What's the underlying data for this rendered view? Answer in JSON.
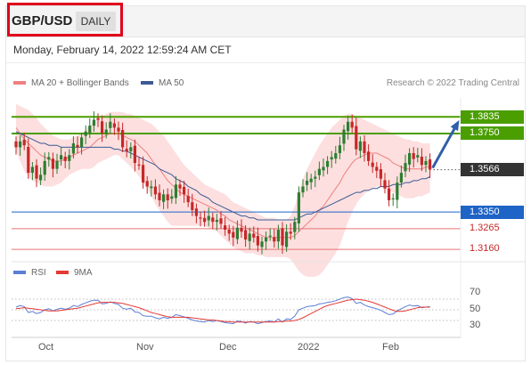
{
  "header": {
    "symbol": "GBP/USD",
    "timeframe": "DAILY",
    "datetime": "Monday, February 14, 2022 12:59:24 AM CET"
  },
  "legend": {
    "bollinger": "MA 20 + Bollinger Bands",
    "ma50": "MA 50",
    "credit": "Research © 2022 Trading Central"
  },
  "osc_legend": {
    "rsi": "RSI",
    "ma9": "9MA"
  },
  "levels": [
    {
      "label": "1.3835",
      "value": 1.3835,
      "style": "resistance"
    },
    {
      "label": "1.3750",
      "value": 1.375,
      "style": "resistance"
    },
    {
      "label": "1.3566",
      "value": 1.3566,
      "style": "current"
    },
    {
      "label": "1.3350",
      "value": 1.335,
      "style": "pivot"
    },
    {
      "label": "1.3265",
      "value": 1.3265,
      "style": "support"
    },
    {
      "label": "1.3160",
      "value": 1.316,
      "style": "support"
    }
  ],
  "osc_levels": [
    "70",
    "50",
    "30"
  ],
  "months": [
    "Oct",
    "Nov",
    "Dec",
    "2022",
    "Feb"
  ],
  "colors": {
    "up": "#2e7d32",
    "down": "#c62828",
    "ma20": "#f08080",
    "band": "#fdd9d9",
    "ma50": "#3d5a96",
    "resistance": "#4a9e00",
    "pivot": "#1e63c6",
    "support": "#e57373",
    "rsi": "#5b7fd6",
    "ma9": "#e53935",
    "current": "#333333"
  },
  "chart_data": {
    "type": "candlestick",
    "interval": "daily",
    "ylim": [
      1.3115,
      1.3945
    ],
    "x": [
      "2021-09-23",
      "2021-09-24",
      "2021-09-27",
      "2021-09-28",
      "2021-09-29",
      "2021-09-30",
      "2021-10-01",
      "2021-10-04",
      "2021-10-05",
      "2021-10-06",
      "2021-10-07",
      "2021-10-08",
      "2021-10-11",
      "2021-10-12",
      "2021-10-13",
      "2021-10-14",
      "2021-10-15",
      "2021-10-18",
      "2021-10-19",
      "2021-10-20",
      "2021-10-21",
      "2021-10-22",
      "2021-10-25",
      "2021-10-26",
      "2021-10-27",
      "2021-10-28",
      "2021-10-29",
      "2021-11-01",
      "2021-11-02",
      "2021-11-03",
      "2021-11-04",
      "2021-11-05",
      "2021-11-08",
      "2021-11-09",
      "2021-11-10",
      "2021-11-11",
      "2021-11-12",
      "2021-11-15",
      "2021-11-16",
      "2021-11-17",
      "2021-11-18",
      "2021-11-19",
      "2021-11-22",
      "2021-11-23",
      "2021-11-24",
      "2021-11-25",
      "2021-11-26",
      "2021-11-29",
      "2021-11-30",
      "2021-12-01",
      "2021-12-02",
      "2021-12-03",
      "2021-12-06",
      "2021-12-07",
      "2021-12-08",
      "2021-12-09",
      "2021-12-10",
      "2021-12-13",
      "2021-12-14",
      "2021-12-15",
      "2021-12-16",
      "2021-12-17",
      "2021-12-20",
      "2021-12-21",
      "2021-12-22",
      "2021-12-23",
      "2021-12-24",
      "2021-12-27",
      "2021-12-28",
      "2021-12-29",
      "2021-12-30",
      "2021-12-31",
      "2022-01-03",
      "2022-01-04",
      "2022-01-05",
      "2022-01-06",
      "2022-01-07",
      "2022-01-10",
      "2022-01-11",
      "2022-01-12",
      "2022-01-13",
      "2022-01-14",
      "2022-01-17",
      "2022-01-18",
      "2022-01-19",
      "2022-01-20",
      "2022-01-21",
      "2022-01-24",
      "2022-01-25",
      "2022-01-26",
      "2022-01-27",
      "2022-01-28",
      "2022-01-31",
      "2022-02-01",
      "2022-02-02",
      "2022-02-03",
      "2022-02-04",
      "2022-02-07",
      "2022-02-08",
      "2022-02-09",
      "2022-02-10",
      "2022-02-11"
    ],
    "close": [
      1.368,
      1.371,
      1.369,
      1.355,
      1.358,
      1.352,
      1.354,
      1.361,
      1.363,
      1.357,
      1.361,
      1.364,
      1.361,
      1.364,
      1.37,
      1.368,
      1.373,
      1.376,
      1.379,
      1.382,
      1.382,
      1.375,
      1.377,
      1.381,
      1.378,
      1.376,
      1.368,
      1.366,
      1.368,
      1.36,
      1.359,
      1.35,
      1.348,
      1.348,
      1.344,
      1.341,
      1.344,
      1.341,
      1.343,
      1.349,
      1.347,
      1.344,
      1.34,
      1.336,
      1.333,
      1.332,
      1.33,
      1.333,
      1.33,
      1.331,
      1.329,
      1.326,
      1.324,
      1.322,
      1.327,
      1.325,
      1.321,
      1.324,
      1.322,
      1.318,
      1.32,
      1.322,
      1.323,
      1.32,
      1.326,
      1.318,
      1.325,
      1.324,
      1.33,
      1.345,
      1.348,
      1.351,
      1.352,
      1.353,
      1.357,
      1.358,
      1.361,
      1.363,
      1.365,
      1.369,
      1.377,
      1.381,
      1.378,
      1.367,
      1.371,
      1.365,
      1.361,
      1.358,
      1.356,
      1.352,
      1.347,
      1.341,
      1.342,
      1.35,
      1.355,
      1.36,
      1.365,
      1.362,
      1.364,
      1.359,
      1.361,
      1.3566
    ],
    "ma20": [
      1.378,
      1.375,
      1.372,
      1.37,
      1.368,
      1.366,
      1.364,
      1.363,
      1.362,
      1.361,
      1.361,
      1.361,
      1.362,
      1.363,
      1.364,
      1.365,
      1.366,
      1.367,
      1.368,
      1.37,
      1.372,
      1.373,
      1.374,
      1.375,
      1.375,
      1.375,
      1.374,
      1.373,
      1.372,
      1.371,
      1.369,
      1.367,
      1.365,
      1.362,
      1.359,
      1.357,
      1.354,
      1.351,
      1.349,
      1.347,
      1.345,
      1.344,
      1.343,
      1.342,
      1.341,
      1.34,
      1.339,
      1.338,
      1.337,
      1.336,
      1.334,
      1.333,
      1.331,
      1.33,
      1.329,
      1.328,
      1.327,
      1.326,
      1.325,
      1.324,
      1.323,
      1.322,
      1.322,
      1.322,
      1.322,
      1.322,
      1.322,
      1.322,
      1.323,
      1.325,
      1.327,
      1.329,
      1.331,
      1.333,
      1.336,
      1.338,
      1.341,
      1.344,
      1.347,
      1.35,
      1.354,
      1.357,
      1.36,
      1.362,
      1.363,
      1.364,
      1.365,
      1.365,
      1.365,
      1.364,
      1.363,
      1.362,
      1.36,
      1.359,
      1.358,
      1.357,
      1.357,
      1.357,
      1.357,
      1.357,
      1.358,
      1.358
    ],
    "ma50": [
      1.376,
      1.375,
      1.374,
      1.373,
      1.372,
      1.371,
      1.37,
      1.37,
      1.369,
      1.369,
      1.369,
      1.368,
      1.368,
      1.368,
      1.368,
      1.368,
      1.368,
      1.368,
      1.368,
      1.368,
      1.368,
      1.368,
      1.368,
      1.368,
      1.367,
      1.367,
      1.366,
      1.366,
      1.365,
      1.364,
      1.363,
      1.362,
      1.361,
      1.36,
      1.359,
      1.357,
      1.356,
      1.355,
      1.354,
      1.352,
      1.351,
      1.35,
      1.348,
      1.347,
      1.346,
      1.344,
      1.343,
      1.342,
      1.34,
      1.339,
      1.338,
      1.337,
      1.336,
      1.335,
      1.334,
      1.333,
      1.333,
      1.332,
      1.332,
      1.331,
      1.331,
      1.331,
      1.331,
      1.331,
      1.331,
      1.331,
      1.331,
      1.331,
      1.331,
      1.332,
      1.333,
      1.334,
      1.334,
      1.335,
      1.336,
      1.337,
      1.338,
      1.339,
      1.34,
      1.341,
      1.342,
      1.343,
      1.344,
      1.345,
      1.345,
      1.346,
      1.346,
      1.347,
      1.347,
      1.348,
      1.348,
      1.348,
      1.349,
      1.349,
      1.349,
      1.35,
      1.35,
      1.351,
      1.351,
      1.352,
      1.352,
      1.353
    ],
    "band_upper": [
      1.39,
      1.389,
      1.388,
      1.387,
      1.385,
      1.383,
      1.38,
      1.378,
      1.376,
      1.374,
      1.373,
      1.372,
      1.372,
      1.372,
      1.373,
      1.374,
      1.375,
      1.377,
      1.379,
      1.381,
      1.383,
      1.384,
      1.385,
      1.386,
      1.386,
      1.386,
      1.386,
      1.385,
      1.385,
      1.384,
      1.383,
      1.382,
      1.381,
      1.38,
      1.378,
      1.376,
      1.374,
      1.371,
      1.368,
      1.365,
      1.362,
      1.359,
      1.357,
      1.355,
      1.353,
      1.351,
      1.349,
      1.348,
      1.347,
      1.346,
      1.345,
      1.344,
      1.342,
      1.34,
      1.339,
      1.338,
      1.337,
      1.336,
      1.335,
      1.334,
      1.333,
      1.332,
      1.332,
      1.332,
      1.331,
      1.331,
      1.331,
      1.333,
      1.338,
      1.345,
      1.352,
      1.357,
      1.361,
      1.365,
      1.369,
      1.372,
      1.375,
      1.378,
      1.38,
      1.382,
      1.384,
      1.385,
      1.385,
      1.384,
      1.383,
      1.382,
      1.381,
      1.38,
      1.379,
      1.378,
      1.377,
      1.376,
      1.375,
      1.374,
      1.373,
      1.372,
      1.372,
      1.371,
      1.371,
      1.37,
      1.37,
      1.37
    ],
    "band_lower": [
      1.366,
      1.361,
      1.356,
      1.353,
      1.351,
      1.35,
      1.349,
      1.348,
      1.348,
      1.348,
      1.349,
      1.35,
      1.352,
      1.354,
      1.355,
      1.356,
      1.357,
      1.357,
      1.357,
      1.358,
      1.36,
      1.361,
      1.362,
      1.363,
      1.364,
      1.364,
      1.362,
      1.36,
      1.358,
      1.356,
      1.353,
      1.35,
      1.347,
      1.343,
      1.339,
      1.336,
      1.333,
      1.33,
      1.328,
      1.328,
      1.328,
      1.328,
      1.328,
      1.328,
      1.328,
      1.328,
      1.328,
      1.327,
      1.326,
      1.325,
      1.323,
      1.321,
      1.319,
      1.317,
      1.316,
      1.315,
      1.314,
      1.314,
      1.314,
      1.313,
      1.313,
      1.312,
      1.312,
      1.312,
      1.312,
      1.312,
      1.312,
      1.311,
      1.308,
      1.305,
      1.303,
      1.302,
      1.302,
      1.302,
      1.303,
      1.305,
      1.308,
      1.311,
      1.314,
      1.318,
      1.324,
      1.33,
      1.335,
      1.339,
      1.342,
      1.344,
      1.346,
      1.347,
      1.348,
      1.348,
      1.347,
      1.346,
      1.345,
      1.344,
      1.343,
      1.342,
      1.342,
      1.342,
      1.343,
      1.343,
      1.344,
      1.345
    ],
    "rsi": [
      55,
      58,
      56,
      45,
      47,
      43,
      45,
      50,
      52,
      48,
      51,
      53,
      51,
      53,
      58,
      56,
      60,
      63,
      66,
      68,
      68,
      61,
      62,
      65,
      62,
      60,
      53,
      51,
      53,
      46,
      45,
      39,
      38,
      38,
      35,
      33,
      36,
      34,
      36,
      41,
      39,
      37,
      34,
      31,
      29,
      28,
      27,
      30,
      28,
      30,
      28,
      26,
      25,
      24,
      29,
      28,
      25,
      28,
      27,
      24,
      26,
      28,
      29,
      27,
      33,
      27,
      33,
      32,
      38,
      50,
      53,
      56,
      57,
      58,
      61,
      62,
      64,
      65,
      67,
      70,
      73,
      74,
      71,
      62,
      64,
      59,
      56,
      54,
      52,
      49,
      45,
      41,
      42,
      48,
      52,
      56,
      59,
      57,
      58,
      54,
      55,
      56
    ],
    "ma9": [
      52,
      53,
      54,
      53,
      52,
      51,
      50,
      49,
      48,
      48,
      48,
      49,
      50,
      51,
      52,
      53,
      55,
      57,
      59,
      61,
      63,
      64,
      64,
      64,
      64,
      63,
      62,
      60,
      58,
      56,
      54,
      51,
      48,
      45,
      43,
      41,
      39,
      37,
      36,
      36,
      36,
      36,
      36,
      35,
      34,
      33,
      32,
      31,
      31,
      30,
      29,
      28,
      28,
      27,
      27,
      27,
      27,
      27,
      27,
      27,
      27,
      27,
      27,
      27,
      28,
      28,
      29,
      29,
      30,
      32,
      35,
      39,
      43,
      47,
      51,
      55,
      58,
      60,
      62,
      64,
      66,
      68,
      69,
      70,
      69,
      68,
      66,
      64,
      61,
      58,
      55,
      52,
      49,
      47,
      47,
      48,
      50,
      52,
      54,
      55,
      55,
      55
    ],
    "projection": {
      "from": 1.3566,
      "to": 1.3835
    }
  }
}
